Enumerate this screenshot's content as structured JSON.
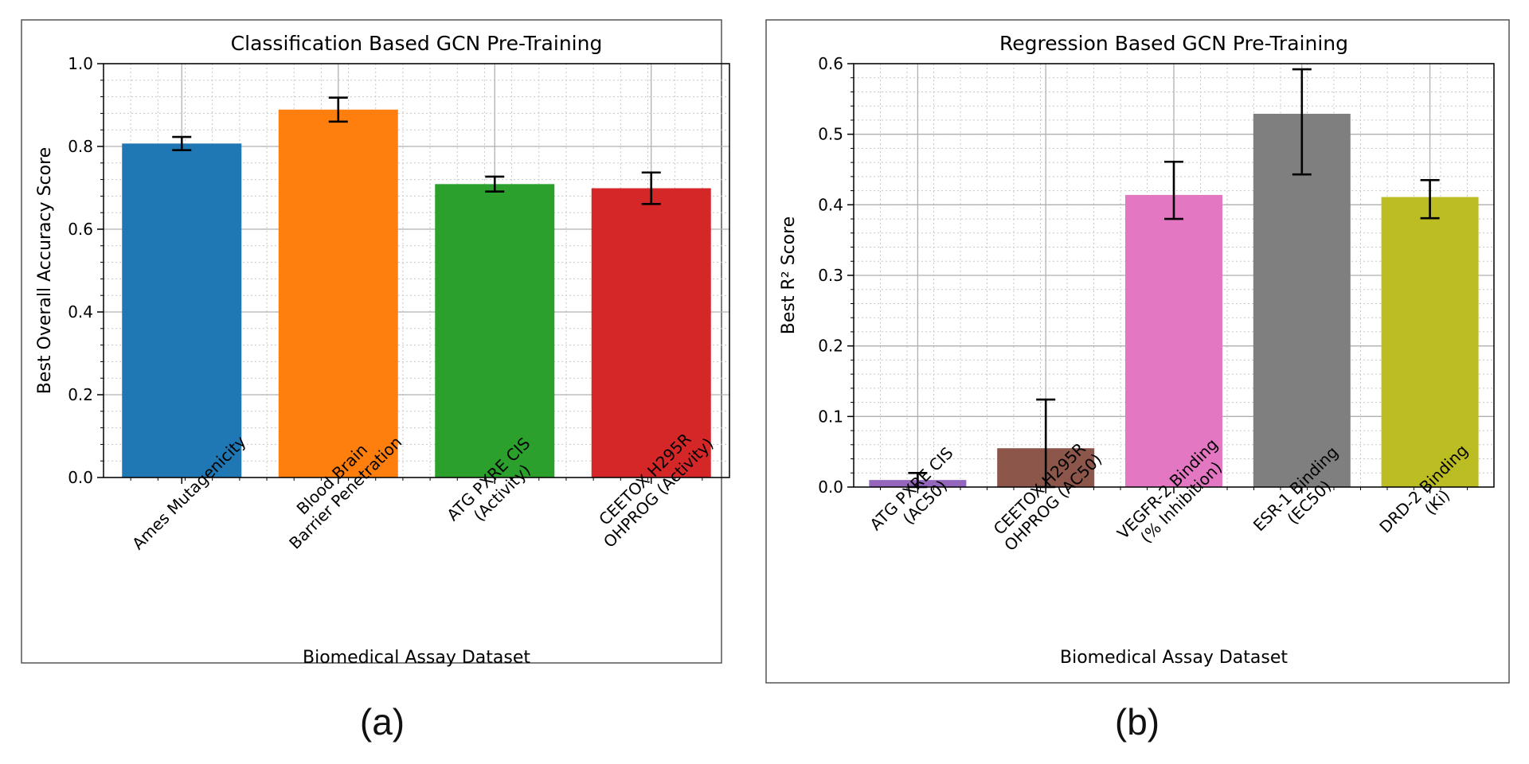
{
  "chart_data": [
    {
      "type": "bar",
      "title": "Classification Based GCN Pre-Training",
      "xlabel": "Biomedical Assay Dataset",
      "ylabel": "Best Overall Accuracy Score",
      "ylim": [
        0,
        1.0
      ],
      "yticks": [
        "0.0",
        "0.2",
        "0.4",
        "0.6",
        "0.8",
        "1.0"
      ],
      "grid": true,
      "categories": [
        [
          "Ames Mutagenicity"
        ],
        [
          "Blood Brain",
          "Barrier Penetration"
        ],
        [
          "ATG PXRE CIS",
          "(Activity)"
        ],
        [
          "CEETOX H295R",
          "OHPROG (Activity)"
        ]
      ],
      "values": [
        0.807,
        0.889,
        0.709,
        0.699
      ],
      "errors": [
        0.016,
        0.029,
        0.018,
        0.038
      ],
      "colors": [
        "#1f77b4",
        "#ff7f0e",
        "#2ca02c",
        "#d62728"
      ]
    },
    {
      "type": "bar",
      "title": "Regression Based GCN Pre-Training",
      "xlabel": "Biomedical Assay Dataset",
      "ylabel": "Best R² Score",
      "ylim": [
        0,
        0.6
      ],
      "yticks": [
        "0.0",
        "0.1",
        "0.2",
        "0.3",
        "0.4",
        "0.5",
        "0.6"
      ],
      "grid": true,
      "categories": [
        [
          "ATG PXRE CIS",
          "(AC50)"
        ],
        [
          "CEETOX H295R",
          "OHPROG (AC50)"
        ],
        [
          "VEGFR-2 Binding",
          "(% Inhibition)"
        ],
        [
          "ESR-1 Binding",
          "(EC50)"
        ],
        [
          "DRD-2 Binding",
          "(Ki)"
        ]
      ],
      "values": [
        0.01,
        0.055,
        0.414,
        0.529,
        0.411
      ],
      "err_low": [
        0.01,
        0.055,
        0.034,
        0.086,
        0.03
      ],
      "err_high": [
        0.01,
        0.069,
        0.047,
        0.063,
        0.024
      ],
      "colors": [
        "#9467bd",
        "#8c564b",
        "#e377c2",
        "#7f7f7f",
        "#bcbd22"
      ]
    }
  ],
  "panel_labels": [
    "(a)",
    "(b)"
  ]
}
